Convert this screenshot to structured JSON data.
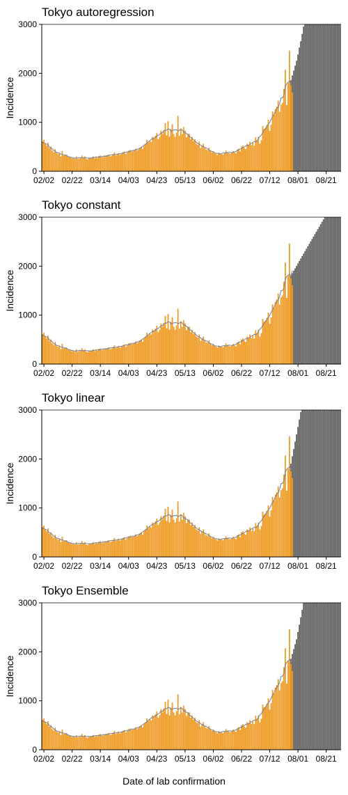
{
  "xlabel": "Date of lab confirmation",
  "colors": {
    "observed_fill": "#f39c1f",
    "observed_edge": "#e8901a",
    "projection_fill": "#a8a8a8",
    "projection_edge": "#333333",
    "expected_line": "#6f7f9a"
  },
  "chart_data": [
    {
      "type": "bar",
      "title": "Tokyo autoregression",
      "xlabel": "Date of lab confirmation",
      "ylabel": "Incidence",
      "ylim": [
        0,
        3000
      ],
      "yticks": [
        0,
        1000,
        2000,
        3000
      ],
      "xticks": [
        "02/02",
        "02/22",
        "03/14",
        "04/03",
        "04/23",
        "05/13",
        "06/02",
        "06/22",
        "07/12",
        "08/01",
        "08/21"
      ],
      "x_range": [
        "2021-02-01",
        "2021-08-31"
      ],
      "observed": {
        "start": "2021-02-01",
        "values": [
          610,
          640,
          560,
          520,
          580,
          470,
          500,
          420,
          390,
          450,
          380,
          350,
          370,
          300,
          410,
          320,
          330,
          340,
          300,
          280,
          290,
          260,
          270,
          250,
          300,
          250,
          260,
          270,
          320,
          280,
          300,
          250,
          240,
          260,
          270,
          280,
          300,
          260,
          290,
          270,
          310,
          320,
          280,
          290,
          300,
          320,
          330,
          340,
          300,
          310,
          350,
          380,
          320,
          340,
          370,
          330,
          360,
          390,
          400,
          350,
          380,
          420,
          430,
          400,
          410,
          430,
          460,
          420,
          440,
          480,
          500,
          450,
          520,
          560,
          640,
          580,
          620,
          600,
          700,
          680,
          720,
          780,
          650,
          700,
          830,
          760,
          820,
          980,
          730,
          1020,
          700,
          860,
          960,
          760,
          700,
          790,
          1130,
          720,
          870,
          760,
          900,
          830,
          690,
          760,
          760,
          650,
          700,
          610,
          650,
          560,
          540,
          600,
          470,
          520,
          560,
          480,
          440,
          430,
          480,
          420,
          380,
          410,
          370,
          350,
          330,
          380,
          360,
          350,
          340,
          380,
          420,
          390,
          370,
          360,
          380,
          410,
          380,
          360,
          440,
          460,
          400,
          500,
          520,
          470,
          450,
          560,
          540,
          600,
          530,
          580,
          520,
          690,
          630,
          700,
          560,
          630,
          920,
          860,
          880,
          940,
          1050,
          820,
          950,
          1220,
          1150,
          1270,
          1320,
          1440,
          1210,
          1360,
          1400,
          1680,
          2070,
          1350,
          1800,
          2460,
          1750,
          1610
        ]
      },
      "projection": {
        "start": "2021-07-27",
        "values": [
          1850,
          1950,
          2050,
          2150,
          2250,
          2380,
          2520,
          2650,
          2800,
          2950,
          3000,
          3000,
          3000,
          3000,
          3000,
          3000,
          3000,
          3000,
          3000,
          3000,
          3000,
          3000,
          3000,
          3000,
          3000,
          3000,
          3000,
          3000,
          3000,
          3000,
          3000,
          3000,
          3000,
          3000,
          3000,
          3000
        ]
      }
    },
    {
      "type": "bar",
      "title": "Tokyo constant",
      "xlabel": "Date of lab confirmation",
      "ylabel": "Incidence",
      "ylim": [
        0,
        3000
      ],
      "yticks": [
        0,
        1000,
        2000,
        3000
      ],
      "xticks": [
        "02/02",
        "02/22",
        "03/14",
        "04/03",
        "04/23",
        "05/13",
        "06/02",
        "06/22",
        "07/12",
        "08/01",
        "08/21"
      ],
      "x_range": [
        "2021-02-01",
        "2021-08-31"
      ],
      "observed": {
        "start": "2021-02-01",
        "values": [
          610,
          640,
          560,
          520,
          580,
          470,
          500,
          420,
          390,
          450,
          380,
          350,
          370,
          300,
          410,
          320,
          330,
          340,
          300,
          280,
          290,
          260,
          270,
          250,
          300,
          250,
          260,
          270,
          320,
          280,
          300,
          250,
          240,
          260,
          270,
          280,
          300,
          260,
          290,
          270,
          310,
          320,
          280,
          290,
          300,
          320,
          330,
          340,
          300,
          310,
          350,
          380,
          320,
          340,
          370,
          330,
          360,
          390,
          400,
          350,
          380,
          420,
          430,
          400,
          410,
          430,
          460,
          420,
          440,
          480,
          500,
          450,
          520,
          560,
          640,
          580,
          620,
          600,
          700,
          680,
          720,
          780,
          650,
          700,
          830,
          760,
          820,
          980,
          730,
          1020,
          700,
          860,
          960,
          760,
          700,
          790,
          1130,
          720,
          870,
          760,
          900,
          830,
          690,
          760,
          760,
          650,
          700,
          610,
          650,
          560,
          540,
          600,
          470,
          520,
          560,
          480,
          440,
          430,
          480,
          420,
          380,
          410,
          370,
          350,
          330,
          380,
          360,
          350,
          340,
          380,
          420,
          390,
          370,
          360,
          380,
          410,
          380,
          360,
          440,
          460,
          400,
          500,
          520,
          470,
          450,
          560,
          540,
          600,
          530,
          580,
          520,
          690,
          630,
          700,
          560,
          630,
          920,
          860,
          880,
          940,
          1050,
          820,
          950,
          1220,
          1150,
          1270,
          1320,
          1440,
          1210,
          1360,
          1400,
          1680,
          2070,
          1350,
          1800,
          2460,
          1750,
          1610
        ]
      },
      "projection": {
        "start": "2021-07-27",
        "values": [
          1800,
          1850,
          1900,
          1950,
          2000,
          2050,
          2100,
          2150,
          2200,
          2250,
          2300,
          2350,
          2400,
          2450,
          2500,
          2550,
          2600,
          2650,
          2700,
          2750,
          2800,
          2850,
          2900,
          2950,
          3000,
          3000,
          3000,
          3000,
          3000,
          3000,
          3000,
          3000,
          3000,
          3000,
          3000,
          3000
        ]
      }
    },
    {
      "type": "bar",
      "title": "Tokyo linear",
      "xlabel": "Date of lab confirmation",
      "ylabel": "Incidence",
      "ylim": [
        0,
        3000
      ],
      "yticks": [
        0,
        1000,
        2000,
        3000
      ],
      "xticks": [
        "02/02",
        "02/22",
        "03/14",
        "04/03",
        "04/23",
        "05/13",
        "06/02",
        "06/22",
        "07/12",
        "08/01",
        "08/21"
      ],
      "x_range": [
        "2021-02-01",
        "2021-08-31"
      ],
      "observed": {
        "start": "2021-02-01",
        "values": [
          610,
          640,
          560,
          520,
          580,
          470,
          500,
          420,
          390,
          450,
          380,
          350,
          370,
          300,
          410,
          320,
          330,
          340,
          300,
          280,
          290,
          260,
          270,
          250,
          300,
          250,
          260,
          270,
          320,
          280,
          300,
          250,
          240,
          260,
          270,
          280,
          300,
          260,
          290,
          270,
          310,
          320,
          280,
          290,
          300,
          320,
          330,
          340,
          300,
          310,
          350,
          380,
          320,
          340,
          370,
          330,
          360,
          390,
          400,
          350,
          380,
          420,
          430,
          400,
          410,
          430,
          460,
          420,
          440,
          480,
          500,
          450,
          520,
          560,
          640,
          580,
          620,
          600,
          700,
          680,
          720,
          780,
          650,
          700,
          830,
          760,
          820,
          980,
          730,
          1020,
          700,
          860,
          960,
          760,
          700,
          790,
          1130,
          720,
          870,
          760,
          900,
          830,
          690,
          760,
          760,
          650,
          700,
          610,
          650,
          560,
          540,
          600,
          470,
          520,
          560,
          480,
          440,
          430,
          480,
          420,
          380,
          410,
          370,
          350,
          330,
          380,
          360,
          350,
          340,
          380,
          420,
          390,
          370,
          360,
          380,
          410,
          380,
          360,
          440,
          460,
          400,
          500,
          520,
          470,
          450,
          560,
          540,
          600,
          530,
          580,
          520,
          690,
          630,
          700,
          560,
          630,
          920,
          860,
          880,
          940,
          1050,
          820,
          950,
          1220,
          1150,
          1270,
          1320,
          1440,
          1210,
          1360,
          1400,
          1680,
          2070,
          1350,
          1800,
          2460,
          1750,
          1610
        ]
      },
      "projection": {
        "start": "2021-07-27",
        "values": [
          1900,
          2050,
          2200,
          2350,
          2500,
          2650,
          2800,
          2950,
          3000,
          3000,
          3000,
          3000,
          3000,
          3000,
          3000,
          3000,
          3000,
          3000,
          3000,
          3000,
          3000,
          3000,
          3000,
          3000,
          3000,
          3000,
          3000,
          3000,
          3000,
          3000,
          3000,
          3000,
          3000,
          3000,
          3000,
          3000
        ]
      }
    },
    {
      "type": "bar",
      "title": "Tokyo Ensemble",
      "xlabel": "Date of lab confirmation",
      "ylabel": "Incidence",
      "ylim": [
        0,
        3000
      ],
      "yticks": [
        0,
        1000,
        2000,
        3000
      ],
      "xticks": [
        "02/02",
        "02/22",
        "03/14",
        "04/03",
        "04/23",
        "05/13",
        "06/02",
        "06/22",
        "07/12",
        "08/01",
        "08/21"
      ],
      "x_range": [
        "2021-02-01",
        "2021-08-31"
      ],
      "observed": {
        "start": "2021-02-01",
        "values": [
          610,
          640,
          560,
          520,
          580,
          470,
          500,
          420,
          390,
          450,
          380,
          350,
          370,
          300,
          410,
          320,
          330,
          340,
          300,
          280,
          290,
          260,
          270,
          250,
          300,
          250,
          260,
          270,
          320,
          280,
          300,
          250,
          240,
          260,
          270,
          280,
          300,
          260,
          290,
          270,
          310,
          320,
          280,
          290,
          300,
          320,
          330,
          340,
          300,
          310,
          350,
          380,
          320,
          340,
          370,
          330,
          360,
          390,
          400,
          350,
          380,
          420,
          430,
          400,
          410,
          430,
          460,
          420,
          440,
          480,
          500,
          450,
          520,
          560,
          640,
          580,
          620,
          600,
          700,
          680,
          720,
          780,
          650,
          700,
          830,
          760,
          820,
          980,
          730,
          1020,
          700,
          860,
          960,
          760,
          700,
          790,
          1130,
          720,
          870,
          760,
          900,
          830,
          690,
          760,
          760,
          650,
          700,
          610,
          650,
          560,
          540,
          600,
          470,
          520,
          560,
          480,
          440,
          430,
          480,
          420,
          380,
          410,
          370,
          350,
          330,
          380,
          360,
          350,
          340,
          380,
          420,
          390,
          370,
          360,
          380,
          410,
          380,
          360,
          440,
          460,
          400,
          500,
          520,
          470,
          450,
          560,
          540,
          600,
          530,
          580,
          520,
          690,
          630,
          700,
          560,
          630,
          920,
          860,
          880,
          940,
          1050,
          820,
          950,
          1220,
          1150,
          1270,
          1320,
          1440,
          1210,
          1360,
          1400,
          1680,
          2070,
          1350,
          1800,
          2460,
          1750,
          1610
        ]
      },
      "projection": {
        "start": "2021-07-27",
        "values": [
          1850,
          1950,
          2050,
          2150,
          2250,
          2400,
          2550,
          2700,
          2850,
          3000,
          3000,
          3000,
          3000,
          3000,
          3000,
          3000,
          3000,
          3000,
          3000,
          3000,
          3000,
          3000,
          3000,
          3000,
          3000,
          3000,
          3000,
          3000,
          3000,
          3000,
          3000,
          3000,
          3000,
          3000,
          3000,
          3000
        ]
      }
    }
  ]
}
